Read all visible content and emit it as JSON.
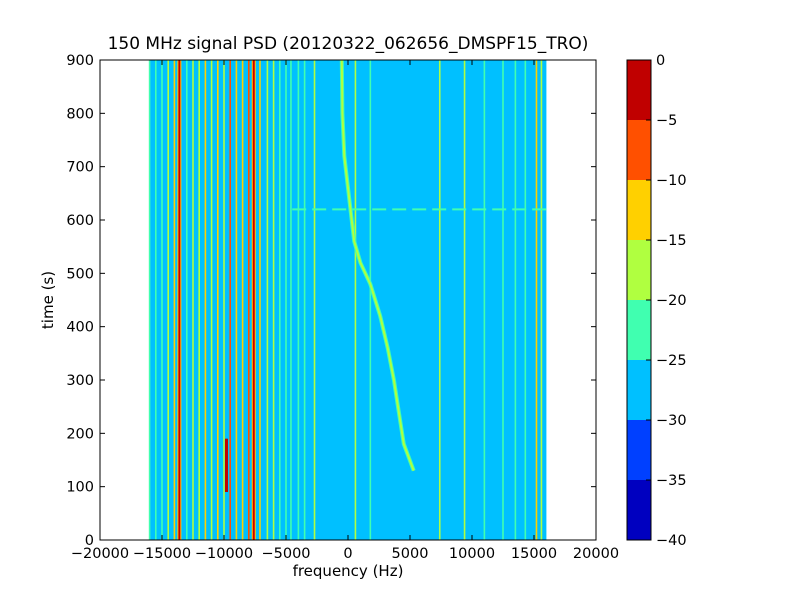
{
  "chart_data": {
    "type": "heatmap",
    "title": "150 MHz signal PSD (20120322_062656_DMSPF15_TRO)",
    "xlabel": "frequency (Hz)",
    "ylabel": "time (s)",
    "xlim": [
      -20000,
      20000
    ],
    "ylim": [
      0,
      900
    ],
    "xticks": [
      -20000,
      -15000,
      -10000,
      -5000,
      0,
      5000,
      10000,
      15000,
      20000
    ],
    "xtick_labels": [
      "−20000",
      "−15000",
      "−10000",
      "−5000",
      "0",
      "5000",
      "10000",
      "15000",
      "20000"
    ],
    "yticks": [
      0,
      100,
      200,
      300,
      400,
      500,
      600,
      700,
      800,
      900
    ],
    "ytick_labels": [
      "0",
      "100",
      "200",
      "300",
      "400",
      "500",
      "600",
      "700",
      "800",
      "900"
    ],
    "data_extent": {
      "x": [
        -16000,
        16000
      ],
      "y": [
        0,
        900
      ]
    },
    "background_level": -27.5,
    "colorbar": {
      "levels": [
        -40,
        -35,
        -30,
        -25,
        -20,
        -15,
        -10,
        -5,
        0
      ],
      "tick_labels": [
        "−40",
        "−35",
        "−30",
        "−25",
        "−20",
        "−15",
        "−10",
        "−5",
        "0"
      ],
      "colors": [
        "#0000c0",
        "#0040ff",
        "#00c0ff",
        "#40ffb0",
        "#b0ff40",
        "#ffd000",
        "#ff5000",
        "#c00000"
      ]
    },
    "vertical_lines": [
      {
        "x": -16000,
        "level": -22.5
      },
      {
        "x": -15500,
        "level": -22.5
      },
      {
        "x": -15000,
        "level": -22.5
      },
      {
        "x": -14500,
        "level": -17.5
      },
      {
        "x": -14000,
        "level": -12.5
      },
      {
        "x": -13600,
        "level": -2.5
      },
      {
        "x": -13000,
        "level": -22.5
      },
      {
        "x": -12500,
        "level": -17.5
      },
      {
        "x": -12000,
        "level": -17.5
      },
      {
        "x": -11500,
        "level": -12.5
      },
      {
        "x": -11000,
        "level": -17.5
      },
      {
        "x": -10500,
        "level": -12.5
      },
      {
        "x": -10000,
        "level": -17.5
      },
      {
        "x": -9500,
        "level": -7.5
      },
      {
        "x": -9000,
        "level": -12.5
      },
      {
        "x": -8500,
        "level": -12.5
      },
      {
        "x": -8000,
        "level": -7.5
      },
      {
        "x": -7600,
        "level": -2.5
      },
      {
        "x": -7100,
        "level": -12.5
      },
      {
        "x": -6500,
        "level": -17.5
      },
      {
        "x": -6000,
        "level": -17.5
      },
      {
        "x": -5500,
        "level": -22.5
      },
      {
        "x": -5000,
        "level": -22.5
      },
      {
        "x": -4600,
        "level": -22.5
      },
      {
        "x": -4000,
        "level": -22.5
      },
      {
        "x": -3500,
        "level": -22.5
      },
      {
        "x": -2700,
        "level": -17.5
      },
      {
        "x": 600,
        "level": -17.5
      },
      {
        "x": 1800,
        "level": -22.5
      },
      {
        "x": 7400,
        "level": -17.5
      },
      {
        "x": 9400,
        "level": -17.5
      },
      {
        "x": 11000,
        "level": -22.5
      },
      {
        "x": 12500,
        "level": -22.5
      },
      {
        "x": 13500,
        "level": -22.5
      },
      {
        "x": 14300,
        "level": -22.5
      },
      {
        "x": 15200,
        "level": -12.5
      },
      {
        "x": 15600,
        "level": -17.5
      }
    ],
    "doppler_trace": {
      "level": -17.5,
      "points": [
        {
          "t": 900,
          "f": -500
        },
        {
          "t": 800,
          "f": -450
        },
        {
          "t": 720,
          "f": -300
        },
        {
          "t": 660,
          "f": 0
        },
        {
          "t": 600,
          "f": 300
        },
        {
          "t": 560,
          "f": 500
        },
        {
          "t": 520,
          "f": 1000
        },
        {
          "t": 480,
          "f": 1800
        },
        {
          "t": 420,
          "f": 2600
        },
        {
          "t": 360,
          "f": 3200
        },
        {
          "t": 300,
          "f": 3700
        },
        {
          "t": 240,
          "f": 4100
        },
        {
          "t": 180,
          "f": 4500
        },
        {
          "t": 130,
          "f": 5300
        }
      ]
    },
    "horizontal_band": {
      "t": 620,
      "f_start": -4500,
      "f_end": 16000,
      "level": -22.5
    },
    "local_features": [
      {
        "x": -9800,
        "t_start": 90,
        "t_end": 190,
        "level": -2.5
      }
    ]
  }
}
